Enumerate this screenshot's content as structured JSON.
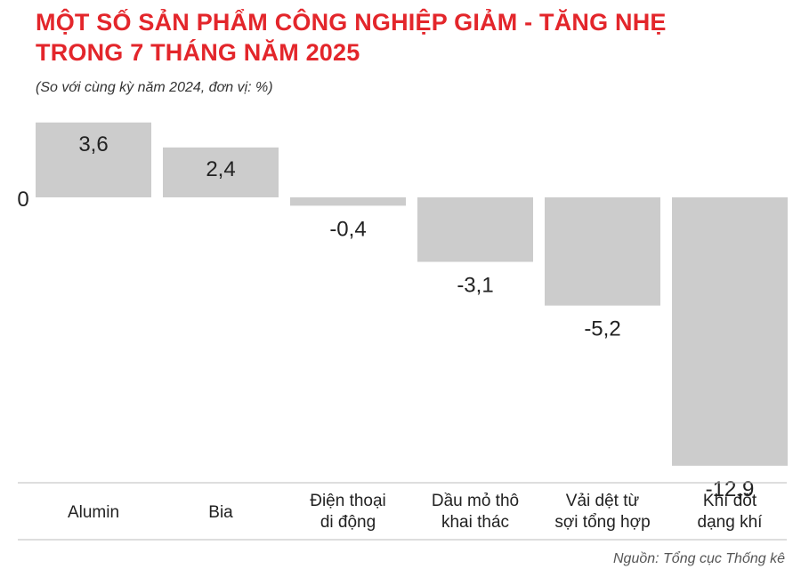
{
  "title_lines": [
    "MỘT SỐ SẢN PHẨM CÔNG NGHIỆP GIẢM - TĂNG NHẸ",
    "TRONG 7 THÁNG NĂM 2025"
  ],
  "subtitle": "(So với cùng kỳ năm 2024, đơn vị: %)",
  "source": "Nguồn: Tổng cục Thống kê",
  "colors": {
    "title": "#e3262b",
    "bar": "#cccccc",
    "text": "#222222",
    "rule": "#bdbdbd"
  },
  "chart_data": {
    "type": "bar",
    "categories": [
      [
        "Alumin"
      ],
      [
        "Bia"
      ],
      [
        "Điện thoại",
        "di động"
      ],
      [
        "Dầu mỏ thô",
        "khai thác"
      ],
      [
        "Vải dệt từ",
        "sợi tổng hợp"
      ],
      [
        "Khí đốt",
        "dạng khí"
      ]
    ],
    "values": [
      3.6,
      2.4,
      -0.4,
      -3.1,
      -5.2,
      -12.9
    ],
    "value_labels": [
      "3,6",
      "2,4",
      "-0,4",
      "-3,1",
      "-5,2",
      "-12,9"
    ],
    "zero_label": "0",
    "ylim": [
      -12.9,
      3.6
    ],
    "grid": false,
    "legend": "none"
  }
}
